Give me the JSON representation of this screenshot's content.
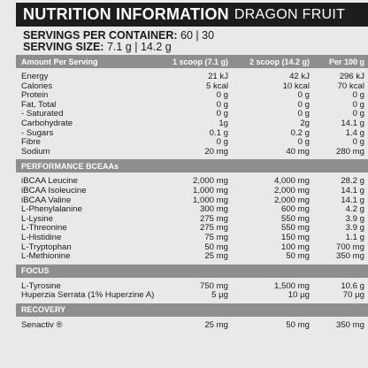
{
  "title": {
    "main": "NUTRITION INFORMATION",
    "flavour": "DRAGON FRUIT"
  },
  "servings": {
    "per_container_label": "SERVINGS PER CONTAINER:",
    "per_container_value": "60 | 30",
    "size_label": "SERVING SIZE:",
    "size_value": "7.1 g | 14.2 g"
  },
  "columns": [
    "Amount Per Serving",
    "1 scoop (7.1 g)",
    "2 scoop (14.2 g)",
    "Per 100 g"
  ],
  "nutrition": [
    [
      "Energy",
      "21 kJ",
      "42 kJ",
      "296 kJ"
    ],
    [
      "Calories",
      "5 kcal",
      "10 kcal",
      "70 kcal"
    ],
    [
      "Protein",
      "0 g",
      "0 g",
      "0 g"
    ],
    [
      "Fat, Total",
      "0 g",
      "0 g",
      "0 g"
    ],
    [
      "- Saturated",
      "0 g",
      "0 g",
      "0 g"
    ],
    [
      "Carbohydrate",
      "1g",
      "2g",
      "14.1 g"
    ],
    [
      "- Sugars",
      "0.1 g",
      "0.2 g",
      "1.4 g"
    ],
    [
      "Fibre",
      "0 g",
      "0 g",
      "0 g"
    ],
    [
      "Sodium",
      "20 mg",
      "40 mg",
      "280 mg"
    ]
  ],
  "sections": [
    {
      "title": "PERFORMANCE BCEAAs",
      "rows": [
        [
          "iBCAA Leucine",
          "2,000 mg",
          "4,000 mg",
          "28.2 g"
        ],
        [
          "iBCAA Isoleucine",
          "1,000 mg",
          "2,000 mg",
          "14.1 g"
        ],
        [
          "iBCAA Valine",
          "1,000 mg",
          "2,000 mg",
          "14.1 g"
        ],
        [
          "L-Phenylalanine",
          "300 mg",
          "600 mg",
          "4.2 g"
        ],
        [
          "L-Lysine",
          "275 mg",
          "550 mg",
          "3.9 g"
        ],
        [
          "L-Threonine",
          "275 mg",
          "550 mg",
          "3.9 g"
        ],
        [
          "L-Histidine",
          "75 mg",
          "150 mg",
          "1.1 g"
        ],
        [
          "L-Tryptophan",
          "50 mg",
          "100 mg",
          "700 mg"
        ],
        [
          "L-Methionine",
          "25 mg",
          "50 mg",
          "350 mg"
        ]
      ]
    },
    {
      "title": "FOCUS",
      "rows": [
        [
          "L-Tyrosine",
          "750 mg",
          "1,500 mg",
          "10.6 g"
        ],
        [
          "Huperzia Serrata (1% Huperzine A)",
          "5 µg",
          "10 µg",
          "70 µg"
        ]
      ]
    },
    {
      "title": "RECOVERY",
      "rows": [
        [
          "Senactiv ®",
          "25 mg",
          "50 mg",
          "350 mg"
        ]
      ]
    }
  ]
}
